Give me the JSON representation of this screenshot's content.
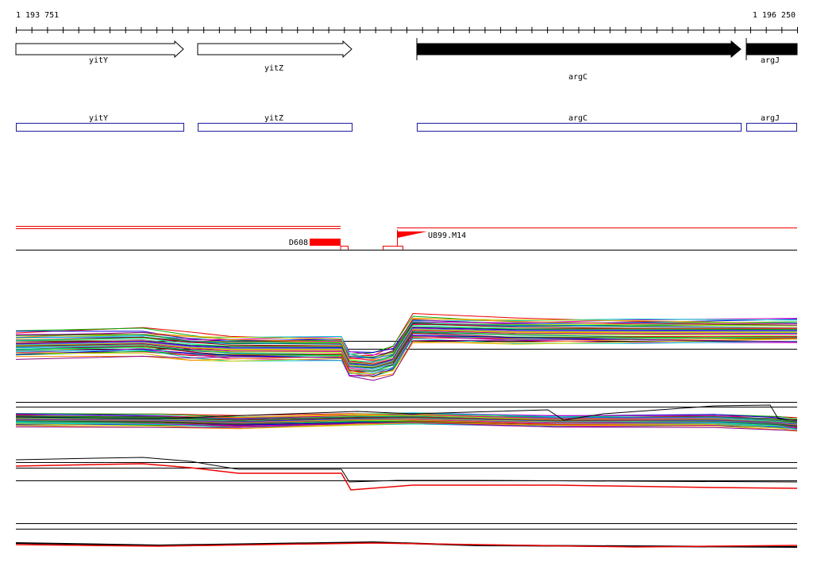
{
  "ruler": {
    "start": "1 193 751",
    "end": "1 196 250"
  },
  "gene_track": [
    {
      "label": "yitY"
    },
    {
      "label": "yitZ"
    },
    {
      "label": "argC"
    },
    {
      "label": "argJ"
    }
  ],
  "annotation_track": [
    {
      "label": "yitY"
    },
    {
      "label": "yitZ"
    },
    {
      "label": "argC"
    },
    {
      "label": "argJ"
    }
  ],
  "features": [
    {
      "label": "D608"
    },
    {
      "label": "U899.M14"
    }
  ]
}
